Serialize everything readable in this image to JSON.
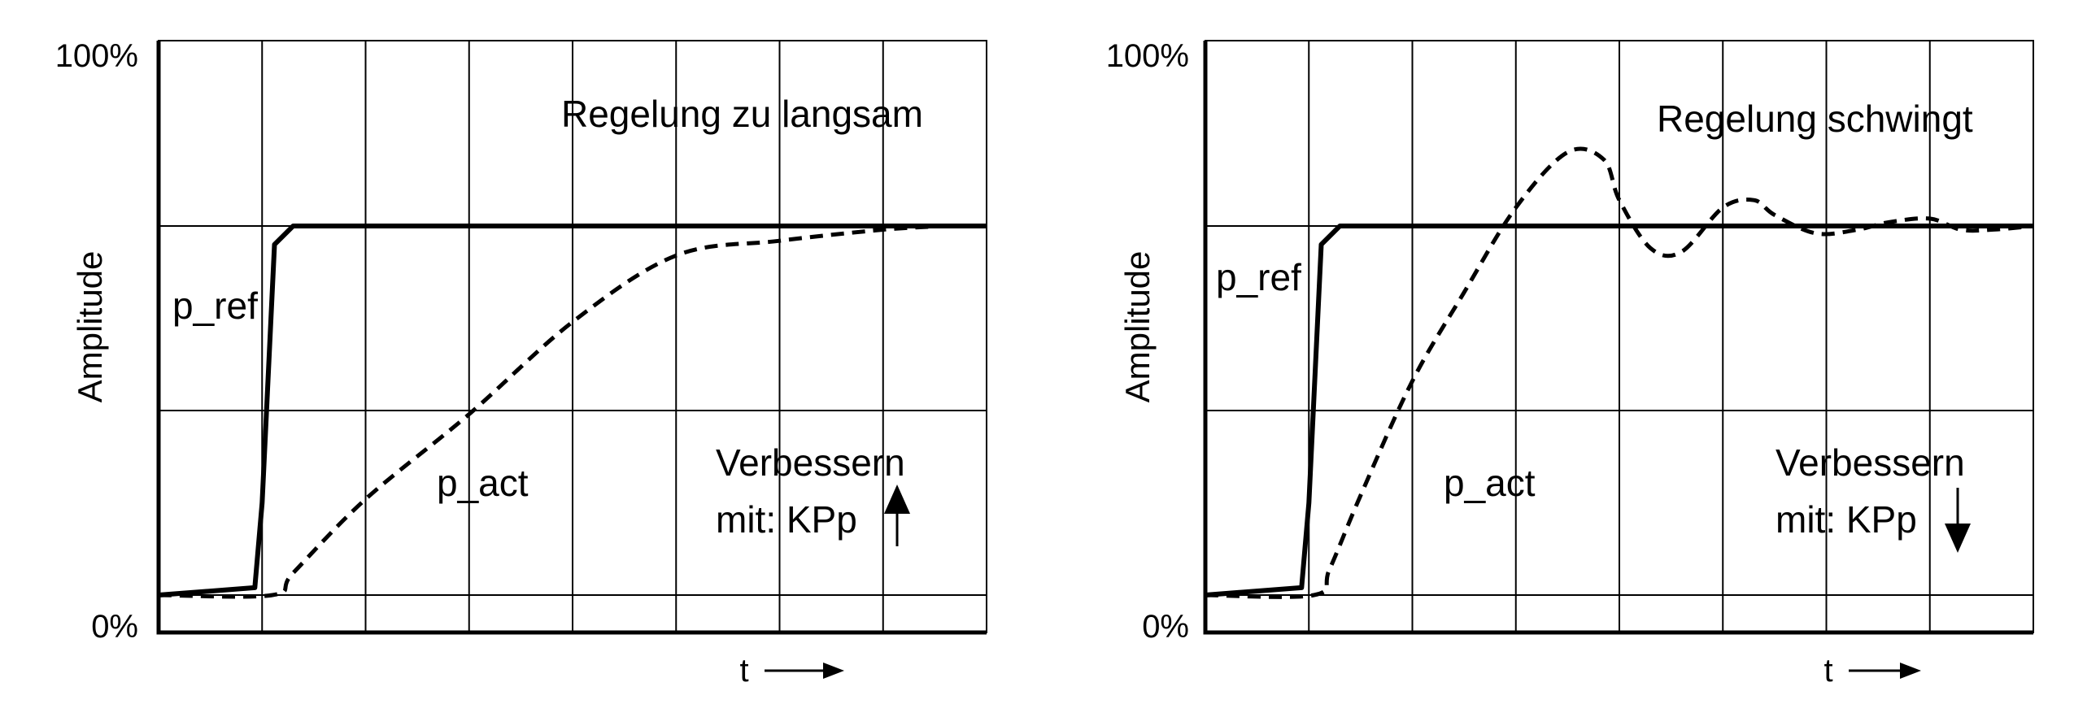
{
  "chart_data": [
    {
      "type": "line",
      "title": "",
      "xlabel": "t",
      "ylabel": "Amplitude",
      "ytick_labels": [
        "0%",
        "100%"
      ],
      "grid": true,
      "annotation": "Regelung zu langsam",
      "hint_lines": [
        "Verbessern",
        "mit: KPp"
      ],
      "hint_arrow": "up",
      "series": [
        {
          "name": "p_ref",
          "style": "solid",
          "x": [
            0,
            0.93,
            1.0,
            1.12,
            1.3,
            8.0
          ],
          "y": [
            0.0,
            0.02,
            0.25,
            0.95,
            1.0,
            1.0
          ]
        },
        {
          "name": "p_act",
          "style": "dashed",
          "x": [
            0,
            1.1,
            1.3,
            2.0,
            3.0,
            4.0,
            5.0,
            6.0,
            7.0,
            7.6
          ],
          "y": [
            0.0,
            0.0,
            0.06,
            0.26,
            0.49,
            0.74,
            0.92,
            0.96,
            0.99,
            1.0
          ]
        }
      ]
    },
    {
      "type": "line",
      "title": "",
      "xlabel": "t",
      "ylabel": "Amplitude",
      "ytick_labels": [
        "0%",
        "100%"
      ],
      "grid": true,
      "annotation": "Regelung schwingt",
      "hint_lines": [
        "Verbessern",
        "mit: KPp"
      ],
      "hint_arrow": "down",
      "series": [
        {
          "name": "p_ref",
          "style": "solid",
          "x": [
            0,
            0.93,
            1.0,
            1.12,
            1.3,
            8.0
          ],
          "y": [
            0.0,
            0.02,
            0.25,
            0.95,
            1.0,
            1.0
          ]
        },
        {
          "name": "p_act",
          "style": "dashed",
          "x": [
            0,
            1.05,
            1.2,
            1.5,
            2.0,
            2.5,
            3.0,
            3.5,
            3.85,
            4.0,
            4.3,
            4.6,
            5.0,
            5.3,
            5.5,
            5.9,
            6.3,
            6.6,
            7.0,
            7.3,
            7.6,
            8.0
          ],
          "y": [
            0.0,
            0.0,
            0.07,
            0.27,
            0.58,
            0.82,
            1.05,
            1.2,
            1.18,
            1.07,
            0.94,
            0.93,
            1.05,
            1.07,
            1.03,
            0.98,
            0.99,
            1.01,
            1.02,
            0.99,
            0.99,
            1.0
          ]
        }
      ]
    }
  ]
}
